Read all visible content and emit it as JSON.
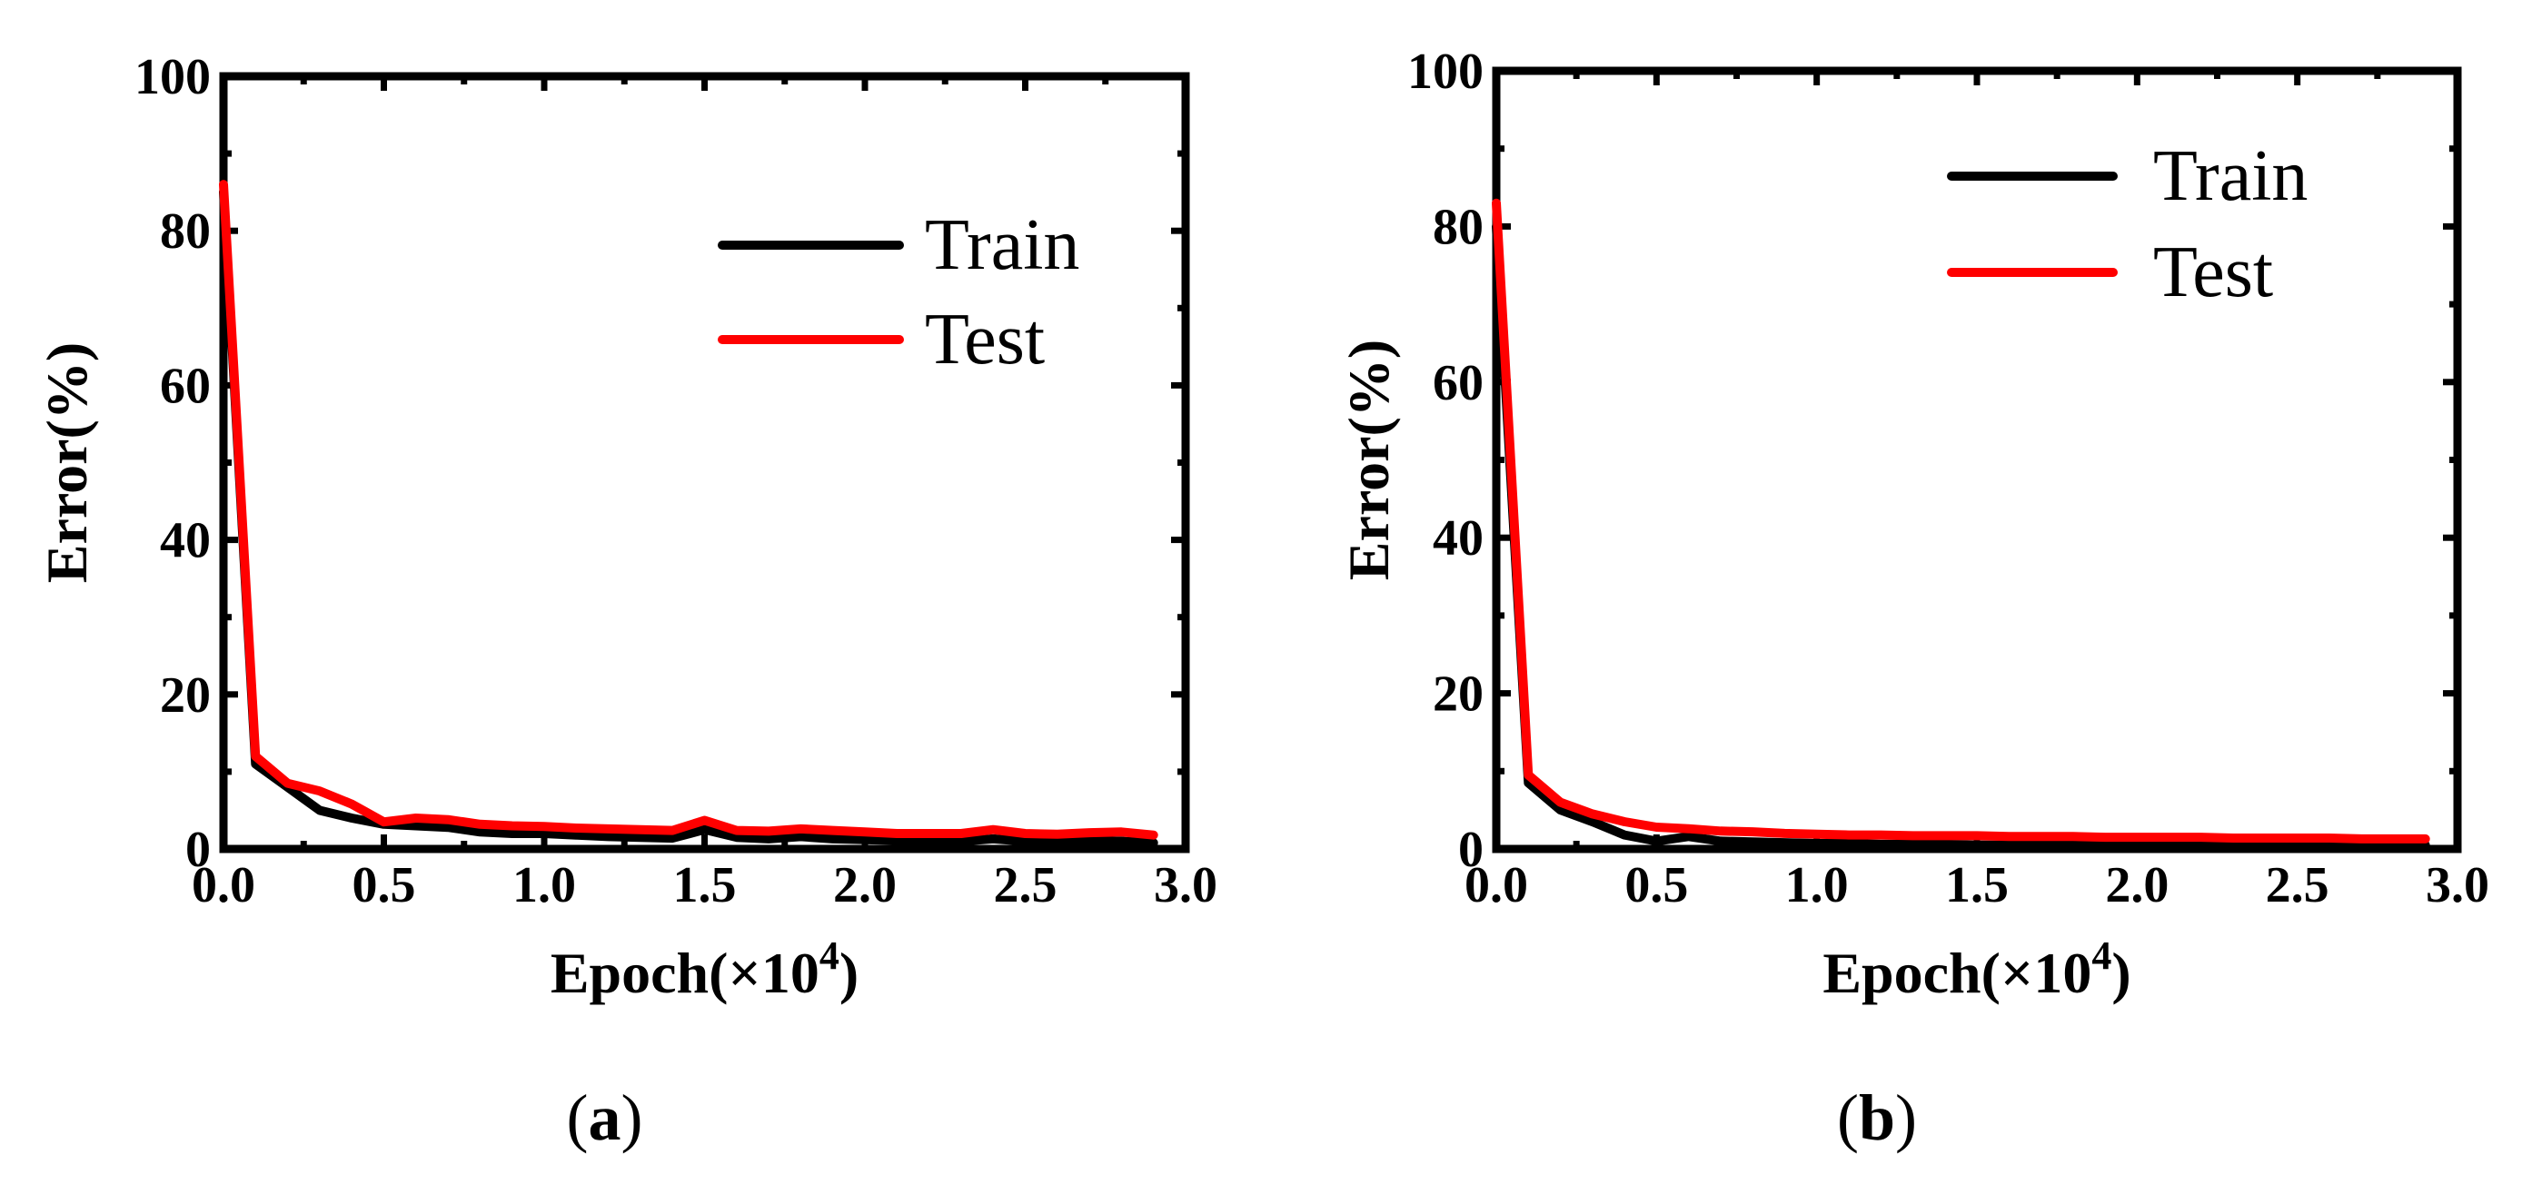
{
  "chart_data": [
    {
      "id": "a",
      "type": "line",
      "panel_label": "a",
      "xlabel": "Epoch(×10",
      "xlabel_sup": "4",
      "xlabel_close": ")",
      "ylabel": "Error(%)",
      "xlim": [
        0,
        3.0
      ],
      "ylim": [
        0,
        100
      ],
      "xticks": [
        "0.0",
        "0.5",
        "1.0",
        "1.5",
        "2.0",
        "2.5",
        "3.0"
      ],
      "yticks": [
        "0",
        "20",
        "40",
        "60",
        "80",
        "100"
      ],
      "legend_position": "top-right",
      "series": [
        {
          "name": "Train",
          "color": "#000000",
          "x": [
            0,
            0.1,
            0.2,
            0.3,
            0.4,
            0.5,
            0.6,
            0.7,
            0.8,
            0.9,
            1.0,
            1.1,
            1.2,
            1.3,
            1.4,
            1.5,
            1.6,
            1.7,
            1.8,
            1.9,
            2.0,
            2.1,
            2.2,
            2.3,
            2.4,
            2.5,
            2.6,
            2.7,
            2.8,
            2.9
          ],
          "y": [
            85,
            11,
            8,
            5,
            4,
            3.2,
            3,
            2.8,
            2.2,
            2,
            2,
            1.8,
            1.6,
            1.5,
            1.4,
            2.5,
            1.5,
            1.3,
            1.6,
            1.3,
            1.2,
            1.1,
            1,
            1,
            1.3,
            1,
            0.9,
            1,
            1,
            0.8
          ]
        },
        {
          "name": "Test",
          "color": "#ff0000",
          "x": [
            0,
            0.1,
            0.2,
            0.3,
            0.4,
            0.5,
            0.6,
            0.7,
            0.8,
            0.9,
            1.0,
            1.1,
            1.2,
            1.3,
            1.4,
            1.5,
            1.6,
            1.7,
            1.8,
            1.9,
            2.0,
            2.1,
            2.2,
            2.3,
            2.4,
            2.5,
            2.6,
            2.7,
            2.8,
            2.9
          ],
          "y": [
            86,
            12,
            8.5,
            7.5,
            5.8,
            3.5,
            4,
            3.8,
            3.2,
            3,
            2.9,
            2.7,
            2.6,
            2.5,
            2.4,
            3.7,
            2.4,
            2.3,
            2.6,
            2.4,
            2.2,
            2,
            2,
            2,
            2.5,
            2,
            1.9,
            2.1,
            2.2,
            1.8
          ]
        }
      ]
    },
    {
      "id": "b",
      "type": "line",
      "panel_label": "b",
      "xlabel": "Epoch(×10",
      "xlabel_sup": "4",
      "xlabel_close": ")",
      "ylabel": "Error(%)",
      "xlim": [
        0,
        3.0
      ],
      "ylim": [
        0,
        100
      ],
      "xticks": [
        "0.0",
        "0.5",
        "1.0",
        "1.5",
        "2.0",
        "2.5",
        "3.0"
      ],
      "yticks": [
        "0",
        "20",
        "40",
        "60",
        "80",
        "100"
      ],
      "legend_position": "top-right",
      "series": [
        {
          "name": "Train",
          "color": "#000000",
          "x": [
            0,
            0.1,
            0.2,
            0.3,
            0.4,
            0.5,
            0.6,
            0.7,
            0.8,
            0.9,
            1.0,
            1.1,
            1.2,
            1.3,
            1.4,
            1.5,
            1.6,
            1.7,
            1.8,
            1.9,
            2.0,
            2.1,
            2.2,
            2.3,
            2.4,
            2.5,
            2.6,
            2.7,
            2.8,
            2.9
          ],
          "y": [
            80,
            8.5,
            5,
            3.5,
            1.8,
            1,
            1.6,
            1,
            0.9,
            0.8,
            0.7,
            0.7,
            0.6,
            0.6,
            0.6,
            0.5,
            0.5,
            0.5,
            0.5,
            0.5,
            0.5,
            0.5,
            0.5,
            0.5,
            0.5,
            0.5,
            0.5,
            0.5,
            0.5,
            0.5
          ]
        },
        {
          "name": "Test",
          "color": "#ff0000",
          "x": [
            0,
            0.1,
            0.2,
            0.3,
            0.4,
            0.5,
            0.6,
            0.7,
            0.8,
            0.9,
            1.0,
            1.1,
            1.2,
            1.3,
            1.4,
            1.5,
            1.6,
            1.7,
            1.8,
            1.9,
            2.0,
            2.1,
            2.2,
            2.3,
            2.4,
            2.5,
            2.6,
            2.7,
            2.8,
            2.9
          ],
          "y": [
            83,
            9.5,
            6,
            4.5,
            3.5,
            2.8,
            2.6,
            2.3,
            2.2,
            2,
            1.9,
            1.8,
            1.8,
            1.7,
            1.7,
            1.7,
            1.6,
            1.6,
            1.6,
            1.5,
            1.5,
            1.5,
            1.5,
            1.4,
            1.4,
            1.4,
            1.4,
            1.3,
            1.3,
            1.3
          ]
        }
      ]
    }
  ]
}
